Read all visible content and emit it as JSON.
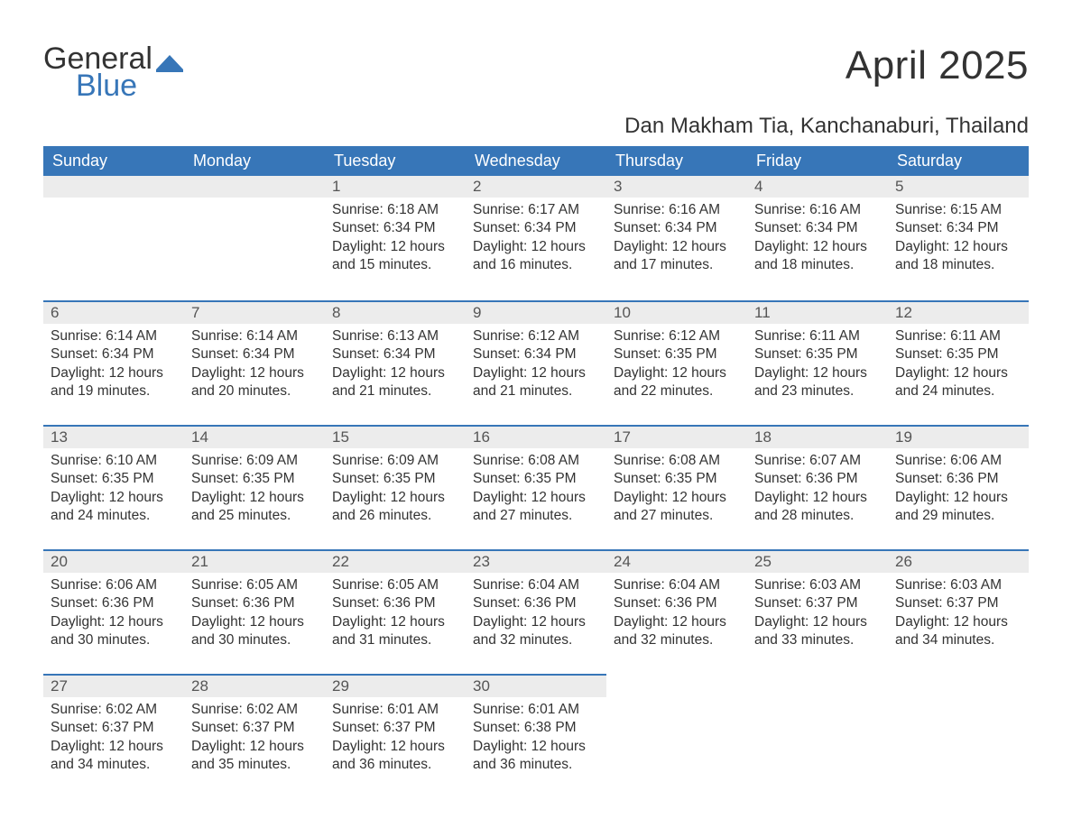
{
  "brand": {
    "word1": "General",
    "word2": "Blue"
  },
  "title": "April 2025",
  "location": "Dan Makham Tia, Kanchanaburi, Thailand",
  "colors": {
    "header_bg": "#3776b8",
    "header_text": "#ffffff",
    "band_bg": "#ececec",
    "band_border": "#3776b8",
    "body_text": "#333333",
    "page_bg": "#ffffff",
    "brand_blue": "#3776b8"
  },
  "typography": {
    "title_fontsize": 44,
    "location_fontsize": 24,
    "dayheader_fontsize": 18,
    "daynum_fontsize": 17,
    "body_fontsize": 15.5,
    "font_family": "Arial"
  },
  "calendar": {
    "day_headers": [
      "Sunday",
      "Monday",
      "Tuesday",
      "Wednesday",
      "Thursday",
      "Friday",
      "Saturday"
    ],
    "first_weekday_index": 2,
    "weeks": [
      [
        null,
        null,
        {
          "n": "1",
          "sunrise": "Sunrise: 6:18 AM",
          "sunset": "Sunset: 6:34 PM",
          "day1": "Daylight: 12 hours",
          "day2": "and 15 minutes."
        },
        {
          "n": "2",
          "sunrise": "Sunrise: 6:17 AM",
          "sunset": "Sunset: 6:34 PM",
          "day1": "Daylight: 12 hours",
          "day2": "and 16 minutes."
        },
        {
          "n": "3",
          "sunrise": "Sunrise: 6:16 AM",
          "sunset": "Sunset: 6:34 PM",
          "day1": "Daylight: 12 hours",
          "day2": "and 17 minutes."
        },
        {
          "n": "4",
          "sunrise": "Sunrise: 6:16 AM",
          "sunset": "Sunset: 6:34 PM",
          "day1": "Daylight: 12 hours",
          "day2": "and 18 minutes."
        },
        {
          "n": "5",
          "sunrise": "Sunrise: 6:15 AM",
          "sunset": "Sunset: 6:34 PM",
          "day1": "Daylight: 12 hours",
          "day2": "and 18 minutes."
        }
      ],
      [
        {
          "n": "6",
          "sunrise": "Sunrise: 6:14 AM",
          "sunset": "Sunset: 6:34 PM",
          "day1": "Daylight: 12 hours",
          "day2": "and 19 minutes."
        },
        {
          "n": "7",
          "sunrise": "Sunrise: 6:14 AM",
          "sunset": "Sunset: 6:34 PM",
          "day1": "Daylight: 12 hours",
          "day2": "and 20 minutes."
        },
        {
          "n": "8",
          "sunrise": "Sunrise: 6:13 AM",
          "sunset": "Sunset: 6:34 PM",
          "day1": "Daylight: 12 hours",
          "day2": "and 21 minutes."
        },
        {
          "n": "9",
          "sunrise": "Sunrise: 6:12 AM",
          "sunset": "Sunset: 6:34 PM",
          "day1": "Daylight: 12 hours",
          "day2": "and 21 minutes."
        },
        {
          "n": "10",
          "sunrise": "Sunrise: 6:12 AM",
          "sunset": "Sunset: 6:35 PM",
          "day1": "Daylight: 12 hours",
          "day2": "and 22 minutes."
        },
        {
          "n": "11",
          "sunrise": "Sunrise: 6:11 AM",
          "sunset": "Sunset: 6:35 PM",
          "day1": "Daylight: 12 hours",
          "day2": "and 23 minutes."
        },
        {
          "n": "12",
          "sunrise": "Sunrise: 6:11 AM",
          "sunset": "Sunset: 6:35 PM",
          "day1": "Daylight: 12 hours",
          "day2": "and 24 minutes."
        }
      ],
      [
        {
          "n": "13",
          "sunrise": "Sunrise: 6:10 AM",
          "sunset": "Sunset: 6:35 PM",
          "day1": "Daylight: 12 hours",
          "day2": "and 24 minutes."
        },
        {
          "n": "14",
          "sunrise": "Sunrise: 6:09 AM",
          "sunset": "Sunset: 6:35 PM",
          "day1": "Daylight: 12 hours",
          "day2": "and 25 minutes."
        },
        {
          "n": "15",
          "sunrise": "Sunrise: 6:09 AM",
          "sunset": "Sunset: 6:35 PM",
          "day1": "Daylight: 12 hours",
          "day2": "and 26 minutes."
        },
        {
          "n": "16",
          "sunrise": "Sunrise: 6:08 AM",
          "sunset": "Sunset: 6:35 PM",
          "day1": "Daylight: 12 hours",
          "day2": "and 27 minutes."
        },
        {
          "n": "17",
          "sunrise": "Sunrise: 6:08 AM",
          "sunset": "Sunset: 6:35 PM",
          "day1": "Daylight: 12 hours",
          "day2": "and 27 minutes."
        },
        {
          "n": "18",
          "sunrise": "Sunrise: 6:07 AM",
          "sunset": "Sunset: 6:36 PM",
          "day1": "Daylight: 12 hours",
          "day2": "and 28 minutes."
        },
        {
          "n": "19",
          "sunrise": "Sunrise: 6:06 AM",
          "sunset": "Sunset: 6:36 PM",
          "day1": "Daylight: 12 hours",
          "day2": "and 29 minutes."
        }
      ],
      [
        {
          "n": "20",
          "sunrise": "Sunrise: 6:06 AM",
          "sunset": "Sunset: 6:36 PM",
          "day1": "Daylight: 12 hours",
          "day2": "and 30 minutes."
        },
        {
          "n": "21",
          "sunrise": "Sunrise: 6:05 AM",
          "sunset": "Sunset: 6:36 PM",
          "day1": "Daylight: 12 hours",
          "day2": "and 30 minutes."
        },
        {
          "n": "22",
          "sunrise": "Sunrise: 6:05 AM",
          "sunset": "Sunset: 6:36 PM",
          "day1": "Daylight: 12 hours",
          "day2": "and 31 minutes."
        },
        {
          "n": "23",
          "sunrise": "Sunrise: 6:04 AM",
          "sunset": "Sunset: 6:36 PM",
          "day1": "Daylight: 12 hours",
          "day2": "and 32 minutes."
        },
        {
          "n": "24",
          "sunrise": "Sunrise: 6:04 AM",
          "sunset": "Sunset: 6:36 PM",
          "day1": "Daylight: 12 hours",
          "day2": "and 32 minutes."
        },
        {
          "n": "25",
          "sunrise": "Sunrise: 6:03 AM",
          "sunset": "Sunset: 6:37 PM",
          "day1": "Daylight: 12 hours",
          "day2": "and 33 minutes."
        },
        {
          "n": "26",
          "sunrise": "Sunrise: 6:03 AM",
          "sunset": "Sunset: 6:37 PM",
          "day1": "Daylight: 12 hours",
          "day2": "and 34 minutes."
        }
      ],
      [
        {
          "n": "27",
          "sunrise": "Sunrise: 6:02 AM",
          "sunset": "Sunset: 6:37 PM",
          "day1": "Daylight: 12 hours",
          "day2": "and 34 minutes."
        },
        {
          "n": "28",
          "sunrise": "Sunrise: 6:02 AM",
          "sunset": "Sunset: 6:37 PM",
          "day1": "Daylight: 12 hours",
          "day2": "and 35 minutes."
        },
        {
          "n": "29",
          "sunrise": "Sunrise: 6:01 AM",
          "sunset": "Sunset: 6:37 PM",
          "day1": "Daylight: 12 hours",
          "day2": "and 36 minutes."
        },
        {
          "n": "30",
          "sunrise": "Sunrise: 6:01 AM",
          "sunset": "Sunset: 6:38 PM",
          "day1": "Daylight: 12 hours",
          "day2": "and 36 minutes."
        },
        null,
        null,
        null
      ]
    ]
  }
}
